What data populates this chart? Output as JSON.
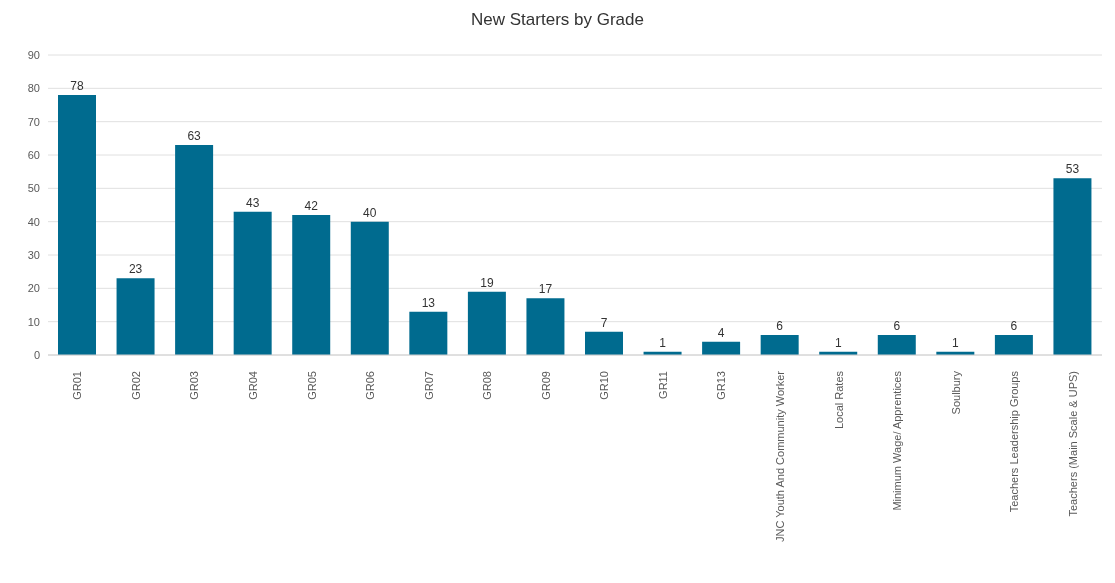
{
  "chart_data": {
    "type": "bar",
    "title": "New Starters by Grade",
    "categories": [
      "GR01",
      "GR02",
      "GR03",
      "GR04",
      "GR05",
      "GR06",
      "GR07",
      "GR08",
      "GR09",
      "GR10",
      "GR11",
      "GR13",
      "JNC Youth And Community Worker",
      "Local Rates",
      "Minimum Wage/ Apprentices",
      "Soulbury",
      "Teachers Leadership Groups",
      "Teachers (Main Scale & UPS)"
    ],
    "values": [
      78,
      23,
      63,
      43,
      42,
      40,
      13,
      19,
      17,
      7,
      1,
      4,
      6,
      1,
      6,
      1,
      6,
      53
    ],
    "color": "#006b8f",
    "ylim": [
      0,
      90
    ],
    "yticks": [
      0,
      10,
      20,
      30,
      40,
      50,
      60,
      70,
      80,
      90
    ],
    "grid": "y",
    "data_labels": true
  }
}
